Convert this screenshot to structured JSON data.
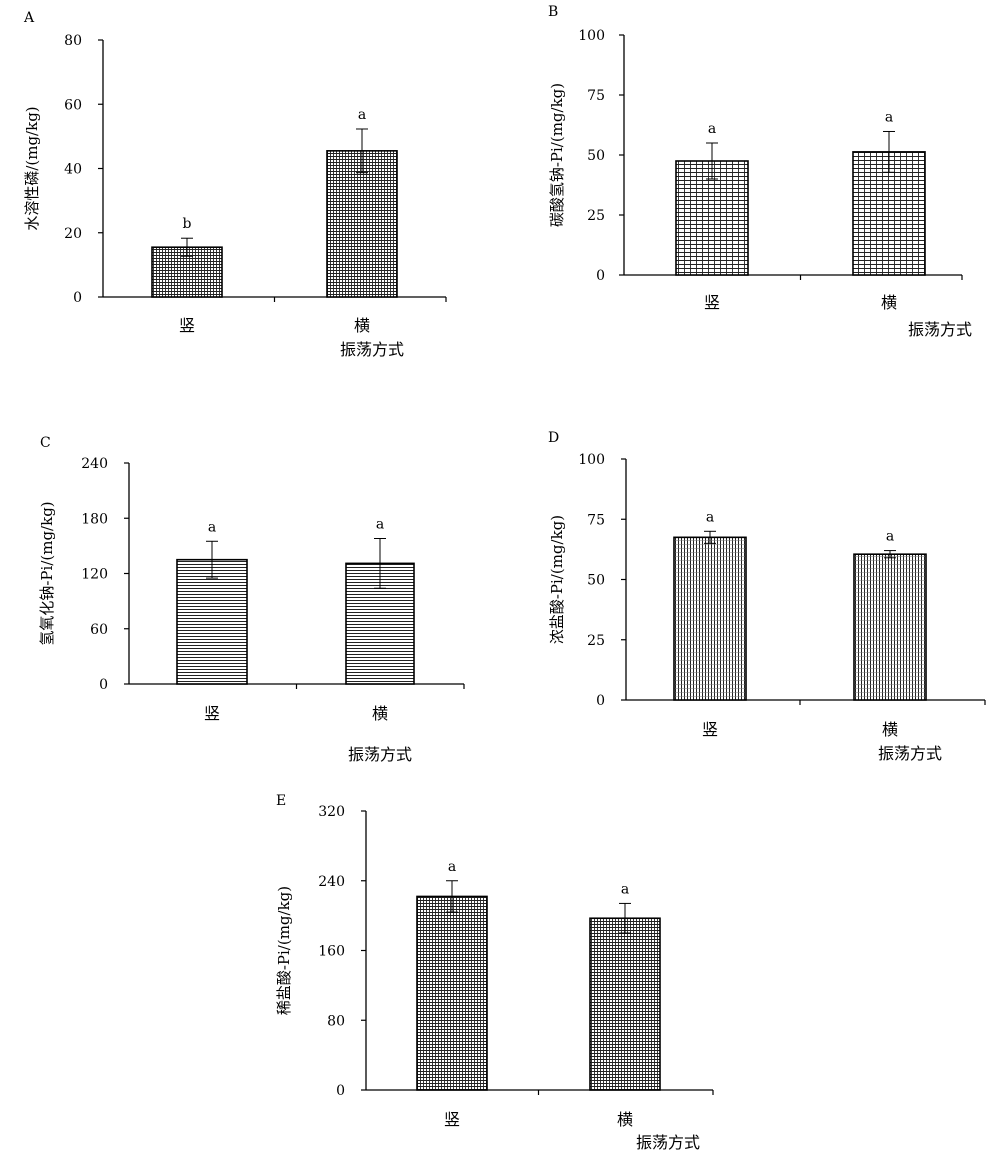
{
  "chart_data": [
    {
      "type": "bar",
      "panel": "A",
      "categories": [
        "竖",
        "横"
      ],
      "values": [
        15.5,
        45.5
      ],
      "errors": [
        2.8,
        6.8
      ],
      "significance": [
        "b",
        "a"
      ],
      "ylabel": "水溶性磷/(mg/kg)",
      "xlabel": "振荡方式",
      "ylim": [
        0,
        80
      ],
      "yticks": [
        "0",
        "20",
        "40",
        "60",
        "80"
      ],
      "pattern": "fine-grid"
    },
    {
      "type": "bar",
      "panel": "B",
      "categories": [
        "竖",
        "横"
      ],
      "values": [
        47.5,
        51.3
      ],
      "errors": [
        7.5,
        8.5
      ],
      "significance": [
        "a",
        "a"
      ],
      "ylabel": "碳酸氢钠-Pi/(mg/kg)",
      "xlabel": "振荡方式",
      "ylim": [
        0,
        100
      ],
      "yticks": [
        "0",
        "25",
        "50",
        "75",
        "100"
      ],
      "pattern": "coarse-grid"
    },
    {
      "type": "bar",
      "panel": "C",
      "categories": [
        "竖",
        "横"
      ],
      "values": [
        135,
        131
      ],
      "errors": [
        20,
        27
      ],
      "significance": [
        "a",
        "a"
      ],
      "ylabel": "氢氧化钠-Pi/(mg/kg)",
      "xlabel": "振荡方式",
      "ylim": [
        0,
        240
      ],
      "yticks": [
        "0",
        "60",
        "120",
        "180",
        "240"
      ],
      "pattern": "horizontal"
    },
    {
      "type": "bar",
      "panel": "D",
      "categories": [
        "竖",
        "横"
      ],
      "values": [
        67.5,
        60.5
      ],
      "errors": [
        2.5,
        1.5
      ],
      "significance": [
        "a",
        "a"
      ],
      "ylabel": "浓盐酸-Pi/(mg/kg)",
      "xlabel": "振荡方式",
      "ylim": [
        0,
        100
      ],
      "yticks": [
        "0",
        "25",
        "50",
        "75",
        "100"
      ],
      "pattern": "vertical"
    },
    {
      "type": "bar",
      "panel": "E",
      "categories": [
        "竖",
        "横"
      ],
      "values": [
        222,
        197
      ],
      "errors": [
        18,
        17
      ],
      "significance": [
        "a",
        "a"
      ],
      "ylabel": "稀盐酸-Pi/(mg/kg)",
      "xlabel": "振荡方式",
      "ylim": [
        0,
        320
      ],
      "yticks": [
        "0",
        "80",
        "160",
        "240",
        "320"
      ],
      "pattern": "fine-grid"
    }
  ]
}
